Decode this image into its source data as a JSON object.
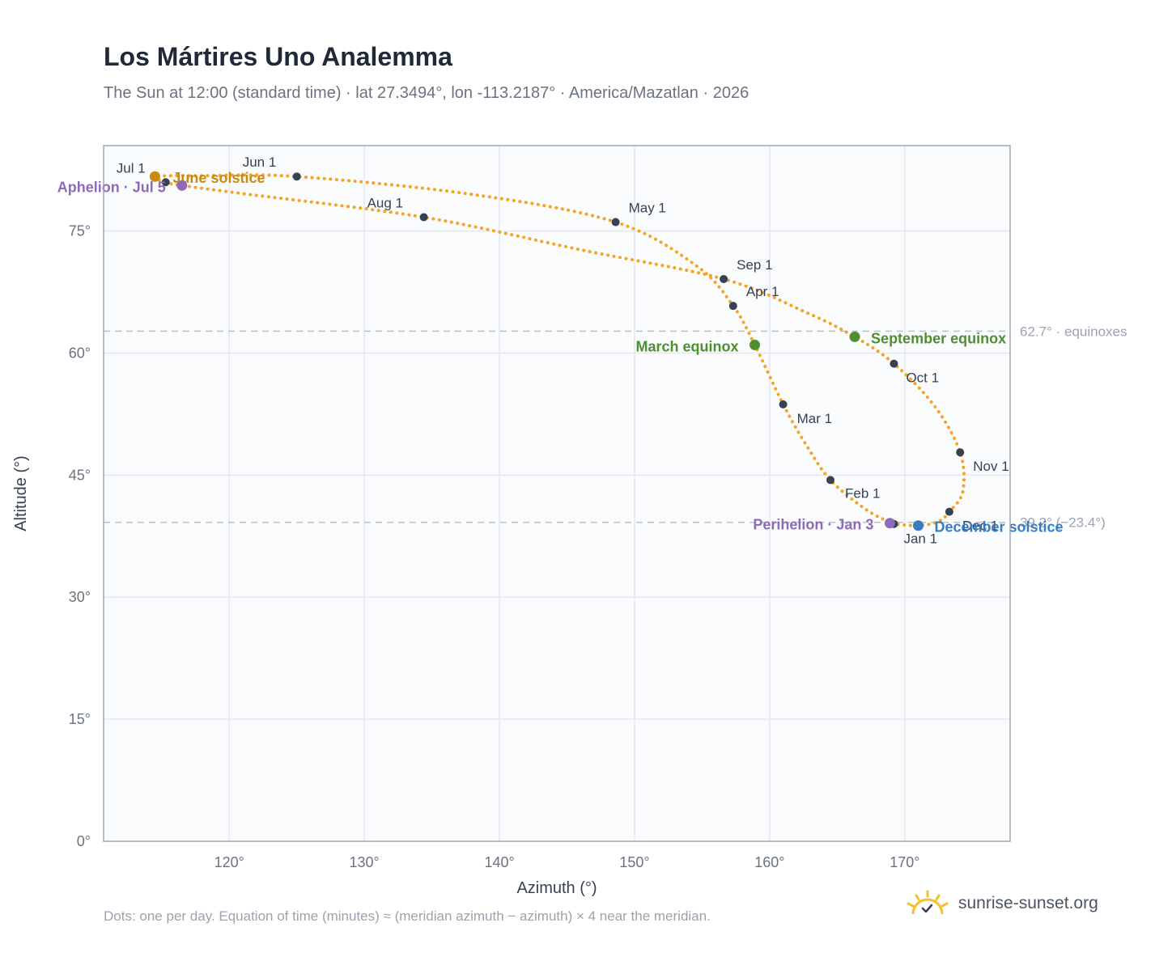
{
  "header": {
    "title": "Los Mártires Uno Analemma",
    "subtitle": "The Sun at 12:00 (standard time) · lat 27.3494°, lon -113.2187° · America/Mazatlan · 2026"
  },
  "footer": {
    "note": "Dots: one per day. Equation of time (minutes) ≈ (meridian azimuth − azimuth) × 4 near the meridian.",
    "brand": "sunrise-sunset.org",
    "brand_icon": "sun-icon"
  },
  "colors": {
    "path": "#f4a523",
    "month_dot": "#374151",
    "equinox": "#4d8f2f",
    "december_solstice": "#3b7bbf",
    "june_solstice": "#c98a0d",
    "apsis": "#8e6bb8",
    "reference_line": "#b8c2cc",
    "plot_bg": "#f9fbfd",
    "grid": "#e5e9ee",
    "frame": "#9ca8b6"
  },
  "chart_data": {
    "type": "scatter",
    "xlabel": "Azimuth (°)",
    "ylabel": "Altitude (°)",
    "xlim": [
      110.7,
      177.8
    ],
    "ylim": [
      0,
      85.5
    ],
    "x_ticks": [
      {
        "value": 120,
        "label": "120°"
      },
      {
        "value": 130,
        "label": "130°"
      },
      {
        "value": 140,
        "label": "140°"
      },
      {
        "value": 150,
        "label": "150°"
      },
      {
        "value": 160,
        "label": "160°"
      },
      {
        "value": 170,
        "label": "170°"
      }
    ],
    "y_ticks": [
      {
        "value": 0,
        "label": "0°"
      },
      {
        "value": 15,
        "label": "15°"
      },
      {
        "value": 30,
        "label": "30°"
      },
      {
        "value": 45,
        "label": "45°"
      },
      {
        "value": 60,
        "label": "60°"
      },
      {
        "value": 75,
        "label": "75°"
      }
    ],
    "grid": true,
    "path_series": [
      {
        "date": "Jan 1",
        "az": 169.2,
        "alt": 39.0
      },
      {
        "date": "Jan 16",
        "az": 167.2,
        "alt": 40.7
      },
      {
        "date": "Feb 1",
        "az": 164.5,
        "alt": 44.4
      },
      {
        "date": "Feb 15",
        "az": 162.6,
        "alt": 49.0
      },
      {
        "date": "Mar 1",
        "az": 161.0,
        "alt": 53.7
      },
      {
        "date": "Mar 20",
        "az": 158.9,
        "alt": 61.0
      },
      {
        "date": "Apr 1",
        "az": 157.3,
        "alt": 65.8
      },
      {
        "date": "Apr 15",
        "az": 154.6,
        "alt": 70.7
      },
      {
        "date": "May 1",
        "az": 148.6,
        "alt": 76.1
      },
      {
        "date": "May 15",
        "az": 138.0,
        "alt": 79.5
      },
      {
        "date": "Jun 1",
        "az": 125.0,
        "alt": 81.7
      },
      {
        "date": "Jun 15",
        "az": 118.0,
        "alt": 81.8
      },
      {
        "date": "Jun 21",
        "az": 114.5,
        "alt": 81.7
      },
      {
        "date": "Jul 1",
        "az": 115.3,
        "alt": 81.0
      },
      {
        "date": "Jul 5",
        "az": 116.5,
        "alt": 80.6
      },
      {
        "date": "Jul 15",
        "az": 121.0,
        "alt": 79.6
      },
      {
        "date": "Aug 1",
        "az": 134.4,
        "alt": 76.7
      },
      {
        "date": "Aug 15",
        "az": 146.0,
        "alt": 72.7
      },
      {
        "date": "Sep 1",
        "az": 156.6,
        "alt": 69.1
      },
      {
        "date": "Sep 15",
        "az": 162.7,
        "alt": 65.0
      },
      {
        "date": "Sep 23",
        "az": 166.3,
        "alt": 62.0
      },
      {
        "date": "Oct 1",
        "az": 169.2,
        "alt": 58.7
      },
      {
        "date": "Oct 15",
        "az": 172.2,
        "alt": 53.5
      },
      {
        "date": "Nov 1",
        "az": 174.1,
        "alt": 47.8
      },
      {
        "date": "Nov 15",
        "az": 174.3,
        "alt": 43.0
      },
      {
        "date": "Dec 1",
        "az": 173.3,
        "alt": 40.5
      },
      {
        "date": "Dec 10",
        "az": 172.5,
        "alt": 39.3
      },
      {
        "date": "Dec 21",
        "az": 171.0,
        "alt": 38.8
      },
      {
        "date": "Jan 1",
        "az": 169.2,
        "alt": 39.0
      }
    ],
    "month_markers": [
      {
        "label": "Jan 1",
        "az": 169.2,
        "alt": 39.0,
        "dx": 12,
        "dy": 24
      },
      {
        "label": "Feb 1",
        "az": 164.5,
        "alt": 44.4,
        "dx": 18,
        "dy": 22
      },
      {
        "label": "Mar 1",
        "az": 161.0,
        "alt": 53.7,
        "dx": 17,
        "dy": 23
      },
      {
        "label": "Apr 1",
        "az": 157.3,
        "alt": 65.8,
        "dx": 16,
        "dy": -12
      },
      {
        "label": "May 1",
        "az": 148.6,
        "alt": 76.1,
        "dx": 16,
        "dy": -12
      },
      {
        "label": "Jun 1",
        "az": 125.0,
        "alt": 81.7,
        "dx": -67,
        "dy": -12
      },
      {
        "label": "Jul 1",
        "az": 115.3,
        "alt": 81.0,
        "dx": -61,
        "dy": -12
      },
      {
        "label": "Aug 1",
        "az": 134.4,
        "alt": 76.7,
        "dx": -70,
        "dy": -12
      },
      {
        "label": "Sep 1",
        "az": 156.6,
        "alt": 69.1,
        "dx": 16,
        "dy": -12
      },
      {
        "label": "Oct 1",
        "az": 169.2,
        "alt": 58.7,
        "dx": 15,
        "dy": 23
      },
      {
        "label": "Nov 1",
        "az": 174.1,
        "alt": 47.8,
        "dx": 16,
        "dy": 23
      },
      {
        "label": "Dec 1",
        "az": 173.3,
        "alt": 40.5,
        "dx": 16,
        "dy": 23
      }
    ],
    "events": [
      {
        "label": "March equinox",
        "az": 158.9,
        "alt": 61.0,
        "color": "#4d8f2f",
        "anchor": "end",
        "dx": -20,
        "dy": 8
      },
      {
        "label": "September equinox",
        "az": 166.3,
        "alt": 62.0,
        "color": "#4d8f2f",
        "anchor": "start",
        "dx": 20,
        "dy": 8
      },
      {
        "label": "June solstice",
        "az": 114.5,
        "alt": 81.7,
        "color": "#c98a0d",
        "anchor": "start",
        "dx": 22,
        "dy": 8
      },
      {
        "label": "December solstice",
        "az": 171.0,
        "alt": 38.8,
        "color": "#3b7bbf",
        "anchor": "start",
        "dx": 20,
        "dy": 8
      },
      {
        "label": "Aphelion · Jul 5",
        "az": 116.5,
        "alt": 80.6,
        "color": "#8e6bb8",
        "anchor": "end",
        "dx": -20,
        "dy": 8
      },
      {
        "label": "Perihelion · Jan 3",
        "az": 168.9,
        "alt": 39.1,
        "color": "#8e6bb8",
        "anchor": "end",
        "dx": -20,
        "dy": 8
      }
    ],
    "reference_lines": [
      {
        "alt": 62.7,
        "label": "62.7° · equinoxes"
      },
      {
        "alt": 39.2,
        "label": "39.2° (−23.4°)"
      }
    ]
  }
}
